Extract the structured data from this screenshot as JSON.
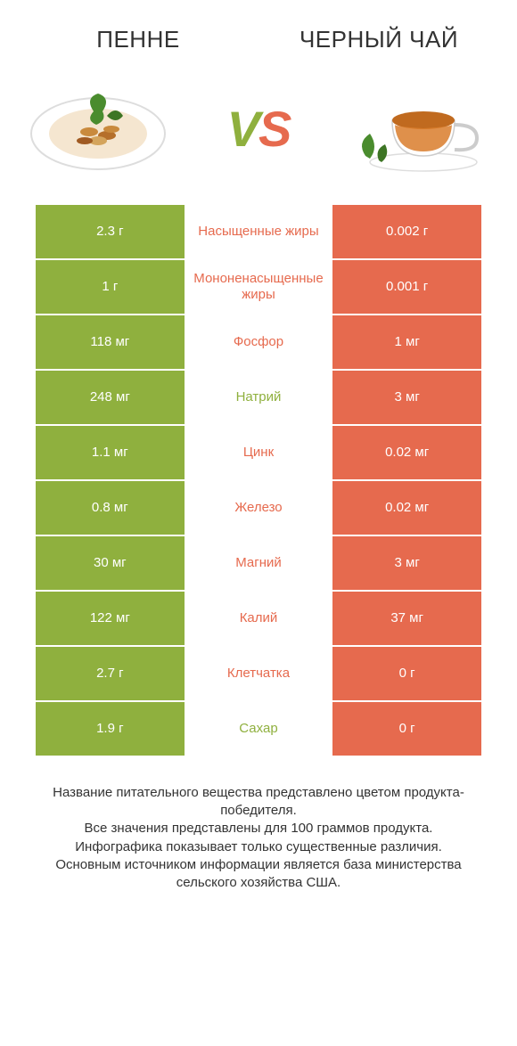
{
  "colors": {
    "green": "#8fb03e",
    "orange": "#e66a4e",
    "text": "#333333",
    "bg": "#ffffff"
  },
  "left_title": "ПЕННЕ",
  "right_title": "ЧЕРНЫЙ ЧАЙ",
  "rows": [
    {
      "left": "2.3 г",
      "mid": "Насыщенные жиры",
      "right": "0.002 г",
      "winner": "left"
    },
    {
      "left": "1 г",
      "mid": "Мононенасыщенные жиры",
      "right": "0.001 г",
      "winner": "left"
    },
    {
      "left": "118 мг",
      "mid": "Фосфор",
      "right": "1 мг",
      "winner": "left"
    },
    {
      "left": "248 мг",
      "mid": "Натрий",
      "right": "3 мг",
      "winner": "right"
    },
    {
      "left": "1.1 мг",
      "mid": "Цинк",
      "right": "0.02 мг",
      "winner": "left"
    },
    {
      "left": "0.8 мг",
      "mid": "Железо",
      "right": "0.02 мг",
      "winner": "left"
    },
    {
      "left": "30 мг",
      "mid": "Магний",
      "right": "3 мг",
      "winner": "left"
    },
    {
      "left": "122 мг",
      "mid": "Калий",
      "right": "37 мг",
      "winner": "left"
    },
    {
      "left": "2.7 г",
      "mid": "Клетчатка",
      "right": "0 г",
      "winner": "left"
    },
    {
      "left": "1.9 г",
      "mid": "Сахар",
      "right": "0 г",
      "winner": "right"
    }
  ],
  "footer_lines": [
    "Название питательного вещества представлено цветом продукта-победителя.",
    "Все значения представлены для 100 граммов продукта.",
    "Инфографика показывает только существенные различия.",
    "Основным источником информации является база министерства сельского хозяйства США."
  ]
}
